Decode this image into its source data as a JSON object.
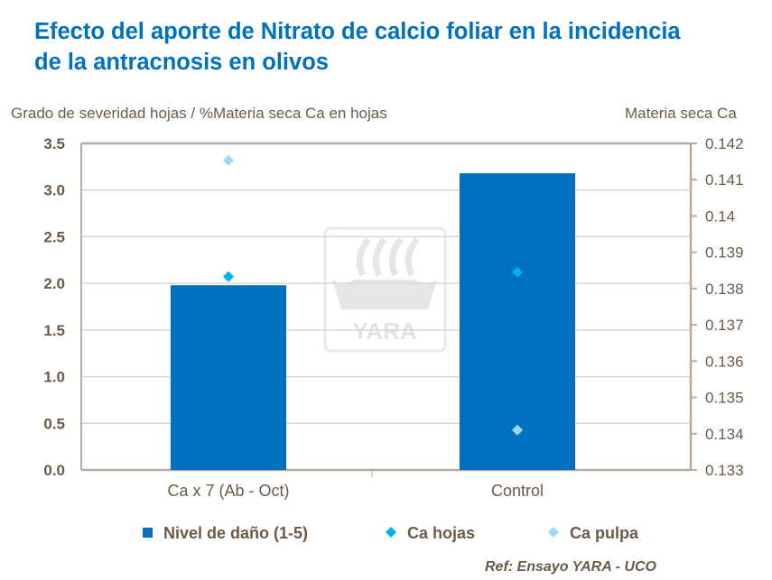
{
  "title_line1": "Efecto del aporte de Nitrato de calcio foliar en la incidencia",
  "title_line2": "de la antracnosis en olivos",
  "reference": "Ref: Ensayo YARA - UCO",
  "watermark": "YARA",
  "chart_data": {
    "type": "bar",
    "title": "Efecto del aporte de Nitrato de calcio foliar en la incidencia de la antracnosis en olivos",
    "categories": [
      "Ca x 7 (Ab - Oct)",
      "Control"
    ],
    "ylabel": "Grado de severidad hojas / %Materia seca Ca en hojas",
    "y2label": "Materia seca Ca",
    "ylim": [
      0,
      3.5
    ],
    "y2lim": [
      0.133,
      0.142
    ],
    "yticks": [
      "0.0",
      "0.5",
      "1.0",
      "1.5",
      "2.0",
      "2.5",
      "3.0",
      "3.5"
    ],
    "y2ticks": [
      "0.133",
      "0.134",
      "0.135",
      "0.136",
      "0.137",
      "0.138",
      "0.139",
      "0.14",
      "0.141",
      "0.142"
    ],
    "grid": true,
    "legend": "bottom",
    "series": [
      {
        "name": "Nivel de daño (1-5)",
        "type": "bar",
        "axis": "left",
        "color": "#0070C0",
        "values": [
          1.98,
          3.18
        ]
      },
      {
        "name": "Ca hojas",
        "type": "scatter",
        "axis": "right",
        "marker": "diamond",
        "color": "#00B0F0",
        "values": [
          0.13833,
          0.13845
        ]
      },
      {
        "name": "Ca pulpa",
        "type": "scatter",
        "axis": "right",
        "marker": "diamond",
        "color": "#9DD9F7",
        "values": [
          0.14153,
          0.1341
        ]
      }
    ]
  }
}
